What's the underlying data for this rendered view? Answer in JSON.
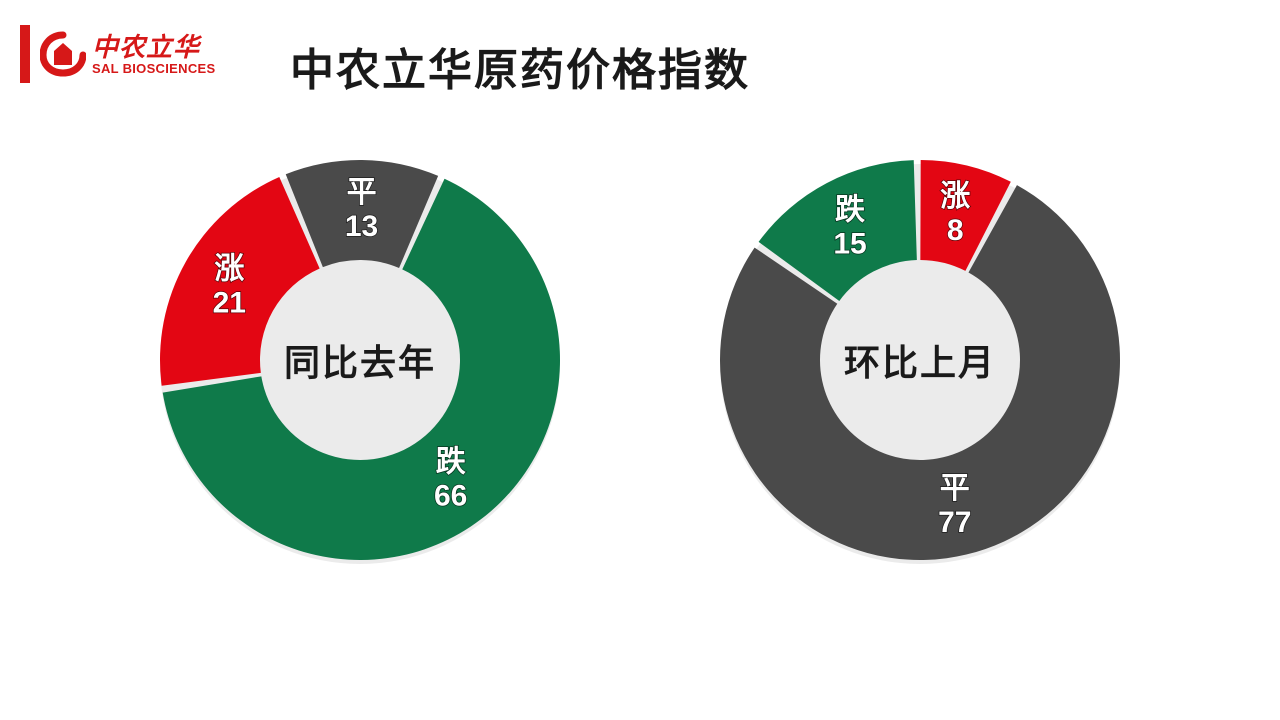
{
  "logo": {
    "cn": "中农立华",
    "en": "SAL BIOSCIENCES",
    "color": "#d61818"
  },
  "title": "中农立华原药价格指数",
  "charts": [
    {
      "center_label": "同比去年",
      "type": "donut",
      "inner_radius": 100,
      "outer_radius": 200,
      "background": "#ffffff",
      "start_angle": 24,
      "slices": [
        {
          "label": "跌",
          "value": 66,
          "color": "#0f7a4a"
        },
        {
          "label": "涨",
          "value": 21,
          "color": "#e30613"
        },
        {
          "label": "平",
          "value": 13,
          "color": "#4a4a4a"
        }
      ],
      "label_fontsize": 30,
      "label_color": "#ffffff"
    },
    {
      "center_label": "环比上月",
      "type": "donut",
      "inner_radius": 100,
      "outer_radius": 200,
      "background": "#ffffff",
      "start_angle": 28,
      "slices": [
        {
          "label": "平",
          "value": 77,
          "color": "#4a4a4a"
        },
        {
          "label": "跌",
          "value": 15,
          "color": "#0f7a4a"
        },
        {
          "label": "涨",
          "value": 8,
          "color": "#e30613"
        }
      ],
      "label_fontsize": 30,
      "label_color": "#ffffff"
    }
  ],
  "styling": {
    "title_fontsize": 44,
    "title_color": "#1a1a1a",
    "center_label_fontsize": 36,
    "slice_gap_deg": 2
  }
}
